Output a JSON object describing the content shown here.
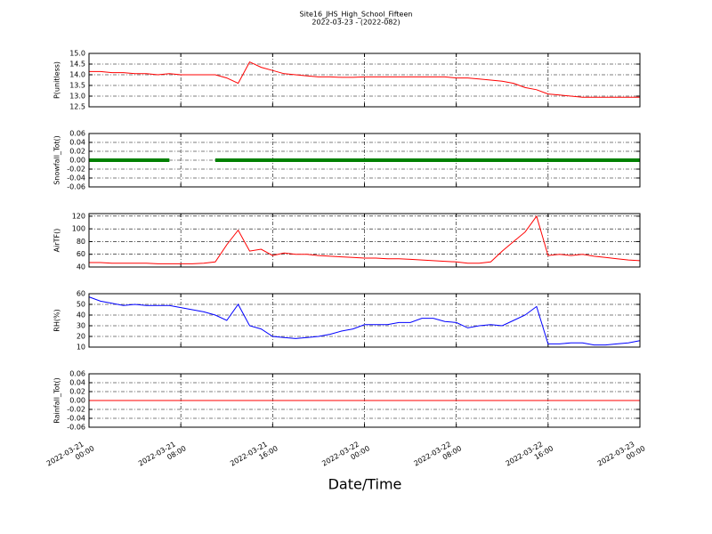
{
  "chart_data": {
    "type": "multi-line",
    "title": "Site16_JHS_High_School_Fifteen",
    "subtitle": "2022-03-23 - (2022-082)",
    "xlabel": "Date/Time",
    "xlim": [
      "2022-03-21 00:00",
      "2022-03-23 00:00"
    ],
    "xticks": [
      "2022-03-21 00:00",
      "2022-03-21 08:00",
      "2022-03-21 16:00",
      "2022-03-22 00:00",
      "2022-03-22 08:00",
      "2022-03-22 16:00",
      "2022-03-23 00:00"
    ],
    "grid": true,
    "x": [
      "2022-03-21 00:00",
      "2022-03-21 01:00",
      "2022-03-21 02:00",
      "2022-03-21 03:00",
      "2022-03-21 04:00",
      "2022-03-21 05:00",
      "2022-03-21 06:00",
      "2022-03-21 07:00",
      "2022-03-21 08:00",
      "2022-03-21 09:00",
      "2022-03-21 10:00",
      "2022-03-21 11:00",
      "2022-03-21 12:00",
      "2022-03-21 13:00",
      "2022-03-21 14:00",
      "2022-03-21 15:00",
      "2022-03-21 16:00",
      "2022-03-21 17:00",
      "2022-03-21 18:00",
      "2022-03-21 19:00",
      "2022-03-21 20:00",
      "2022-03-21 21:00",
      "2022-03-21 22:00",
      "2022-03-21 23:00",
      "2022-03-22 00:00",
      "2022-03-22 01:00",
      "2022-03-22 02:00",
      "2022-03-22 03:00",
      "2022-03-22 04:00",
      "2022-03-22 05:00",
      "2022-03-22 06:00",
      "2022-03-22 07:00",
      "2022-03-22 08:00",
      "2022-03-22 09:00",
      "2022-03-22 10:00",
      "2022-03-22 11:00",
      "2022-03-22 12:00",
      "2022-03-22 13:00",
      "2022-03-22 14:00",
      "2022-03-22 15:00",
      "2022-03-22 16:00",
      "2022-03-22 17:00",
      "2022-03-22 18:00",
      "2022-03-22 19:00",
      "2022-03-22 20:00",
      "2022-03-22 21:00",
      "2022-03-22 22:00",
      "2022-03-22 23:00",
      "2022-03-23 00:00"
    ],
    "panels": [
      {
        "ylabel": "P(unitless)",
        "ylim": [
          12.5,
          15.0
        ],
        "yticks": [
          12.5,
          {
            "value": 13,
            "label": "13.0"
          },
          13.5,
          {
            "value": 14,
            "label": "14.0"
          },
          14.5,
          {
            "value": 15,
            "label": "15.0"
          }
        ],
        "series": [
          {
            "color": "#ff0000",
            "values": [
              14.15,
              14.15,
              14.1,
              14.1,
              14.05,
              14.05,
              14.0,
              14.05,
              14.0,
              14.0,
              14.0,
              14.0,
              13.85,
              13.6,
              14.6,
              14.35,
              14.2,
              14.05,
              14.0,
              13.95,
              13.9,
              13.9,
              13.88,
              13.88,
              13.9,
              13.9,
              13.9,
              13.9,
              13.9,
              13.9,
              13.9,
              13.9,
              13.85,
              13.85,
              13.8,
              13.75,
              13.7,
              13.6,
              13.4,
              13.3,
              13.1,
              13.05,
              13.0,
              12.95,
              12.95,
              12.95,
              12.95,
              12.95,
              12.95
            ]
          }
        ]
      },
      {
        "ylabel": "Snowfall_Tot()",
        "ylim": [
          -0.06,
          0.06
        ],
        "yticks": [
          -0.06,
          -0.04,
          -0.02,
          {
            "value": 0,
            "label": "0.00"
          },
          0.02,
          0.04,
          0.06
        ],
        "series": [
          {
            "color": "#008000",
            "values": [
              0,
              0,
              0,
              0,
              0,
              0,
              0,
              0,
              null,
              null,
              null,
              0,
              0,
              0,
              0,
              0,
              0,
              0,
              0,
              0,
              0,
              0,
              0,
              0,
              0,
              0,
              0,
              0,
              0,
              0,
              0,
              0,
              0,
              0,
              0,
              0,
              0,
              0,
              0,
              0,
              0,
              0,
              0,
              0,
              0,
              0,
              0,
              0,
              0
            ]
          }
        ]
      },
      {
        "ylabel": "AirTF()",
        "ylim": [
          40,
          124
        ],
        "yticks": [
          40,
          60,
          80,
          100,
          120
        ],
        "series": [
          {
            "color": "#ff0000",
            "values": [
              47,
              47,
              46,
              46,
              46,
              46,
              45,
              45,
              45,
              45,
              46,
              48,
              75,
              98,
              65,
              68,
              58,
              62,
              60,
              60,
              58,
              57,
              56,
              55,
              54,
              54,
              53,
              53,
              52,
              51,
              50,
              49,
              48,
              46,
              46,
              48,
              65,
              80,
              95,
              120,
              58,
              60,
              58,
              60,
              57,
              55,
              53,
              51,
              50
            ]
          }
        ]
      },
      {
        "ylabel": "RH(%)",
        "ylim": [
          10,
          60
        ],
        "yticks": [
          10,
          20,
          30,
          40,
          50,
          60
        ],
        "series": [
          {
            "color": "#0000ff",
            "values": [
              57,
              53,
              51,
              49,
              50,
              49,
              49,
              49,
              47,
              45,
              43,
              40,
              35,
              50,
              30,
              27,
              20,
              19,
              18,
              19,
              20,
              22,
              25,
              27,
              31,
              31,
              31,
              33,
              33,
              37,
              37,
              34,
              33,
              28,
              30,
              31,
              30,
              35,
              40,
              48,
              13,
              13,
              14,
              14,
              12,
              12,
              13,
              14,
              16
            ]
          }
        ]
      },
      {
        "ylabel": "Rainfall_Tot()",
        "ylim": [
          -0.06,
          0.06
        ],
        "yticks": [
          -0.06,
          -0.04,
          -0.02,
          {
            "value": 0,
            "label": "0.00"
          },
          0.02,
          0.04,
          0.06
        ],
        "series": [
          {
            "color": "#ff0000",
            "values": [
              0,
              0,
              0,
              0,
              0,
              0,
              0,
              0,
              0,
              0,
              0,
              0,
              0,
              0,
              0,
              0,
              0,
              0,
              0,
              0,
              0,
              0,
              0,
              0,
              0,
              0,
              0,
              0,
              0,
              0,
              0,
              0,
              0,
              0,
              0,
              0,
              0,
              0,
              0,
              0,
              0,
              0,
              0,
              0,
              0,
              0,
              0,
              0,
              0
            ]
          }
        ]
      }
    ]
  }
}
